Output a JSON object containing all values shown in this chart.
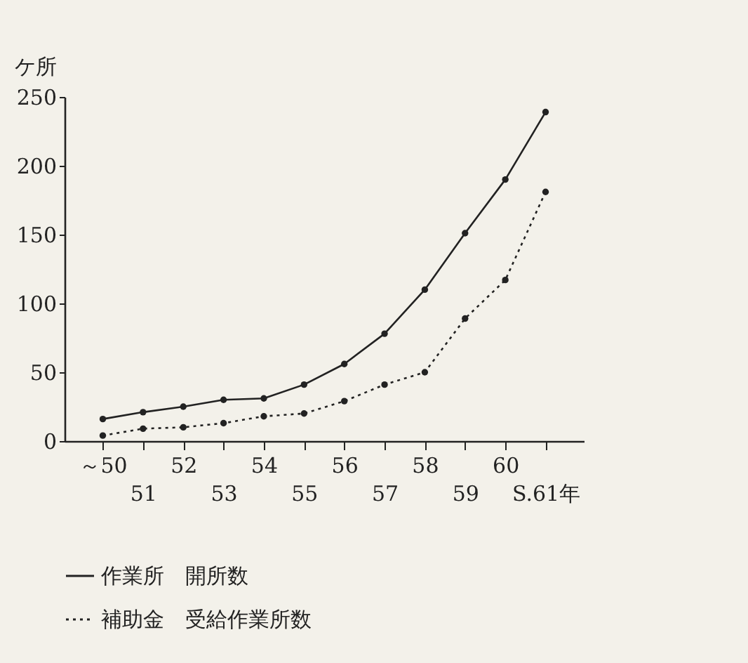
{
  "chart_data": {
    "type": "line",
    "ylabel": "ケ所",
    "categories": [
      "～50",
      "51",
      "52",
      "53",
      "54",
      "55",
      "56",
      "57",
      "58",
      "59",
      "60",
      "S.61年"
    ],
    "series": [
      {
        "name": "作業所　開所数",
        "color": "#222222",
        "line_style": "solid",
        "values": [
          16,
          21,
          25,
          30,
          31,
          41,
          56,
          78,
          110,
          151,
          190,
          239
        ]
      },
      {
        "name": "補助金　受給作業所数",
        "color": "#222222",
        "line_style": "dotted",
        "values": [
          4,
          9,
          10,
          13,
          18,
          20,
          29,
          41,
          50,
          89,
          117,
          181
        ]
      }
    ],
    "ylim": [
      0,
      250
    ],
    "yticks": [
      0,
      50,
      100,
      150,
      200,
      250
    ],
    "grid": false,
    "legend": "bottom",
    "marker": "circle"
  }
}
